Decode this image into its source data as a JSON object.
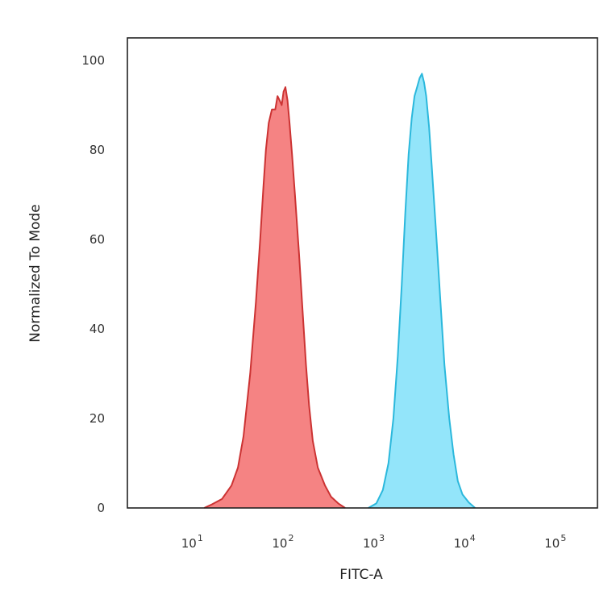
{
  "chart_data": {
    "type": "area",
    "title": "",
    "xlabel": "FITC-A",
    "ylabel": "Normalized To Mode",
    "xscale": "log",
    "xlim": [
      2,
      300000
    ],
    "ylim": [
      0,
      105
    ],
    "grid": false,
    "legend": "none",
    "x_ticks": [
      {
        "value": 10,
        "base": "10",
        "exp": "1"
      },
      {
        "value": 100,
        "base": "10",
        "exp": "2"
      },
      {
        "value": 1000,
        "base": "10",
        "exp": "3"
      },
      {
        "value": 10000,
        "base": "10",
        "exp": "4"
      },
      {
        "value": 100000,
        "base": "10",
        "exp": "5"
      }
    ],
    "y_ticks": [
      0,
      20,
      40,
      60,
      80,
      100
    ],
    "series": [
      {
        "color": "#f47c7c",
        "stroke": "#cc3333",
        "points": [
          [
            14,
            0
          ],
          [
            17,
            0.8
          ],
          [
            22,
            2
          ],
          [
            28,
            5
          ],
          [
            33,
            9
          ],
          [
            38,
            16
          ],
          [
            45,
            30
          ],
          [
            52,
            46
          ],
          [
            58,
            60
          ],
          [
            63,
            72
          ],
          [
            67,
            80
          ],
          [
            72,
            86
          ],
          [
            78,
            89
          ],
          [
            85,
            89
          ],
          [
            90,
            92
          ],
          [
            95,
            91
          ],
          [
            100,
            90
          ],
          [
            105,
            93
          ],
          [
            110,
            94
          ],
          [
            116,
            91
          ],
          [
            122,
            86
          ],
          [
            130,
            79
          ],
          [
            140,
            70
          ],
          [
            155,
            57
          ],
          [
            170,
            44
          ],
          [
            185,
            32
          ],
          [
            200,
            23
          ],
          [
            220,
            15
          ],
          [
            250,
            9
          ],
          [
            300,
            5
          ],
          [
            350,
            2.5
          ],
          [
            420,
            1
          ],
          [
            500,
            0
          ]
        ]
      },
      {
        "color": "#8de4fa",
        "stroke": "#2bb8dc",
        "points": [
          [
            900,
            0
          ],
          [
            1100,
            1
          ],
          [
            1300,
            4
          ],
          [
            1500,
            10
          ],
          [
            1700,
            20
          ],
          [
            1900,
            34
          ],
          [
            2100,
            50
          ],
          [
            2300,
            66
          ],
          [
            2500,
            79
          ],
          [
            2700,
            87
          ],
          [
            2900,
            92
          ],
          [
            3100,
            94
          ],
          [
            3300,
            96
          ],
          [
            3500,
            97
          ],
          [
            3700,
            95
          ],
          [
            3900,
            92
          ],
          [
            4200,
            85
          ],
          [
            4500,
            76
          ],
          [
            5000,
            62
          ],
          [
            5600,
            46
          ],
          [
            6200,
            32
          ],
          [
            7000,
            20
          ],
          [
            7800,
            12
          ],
          [
            8700,
            6
          ],
          [
            9800,
            3
          ],
          [
            11500,
            1.2
          ],
          [
            13500,
            0
          ]
        ]
      }
    ]
  }
}
